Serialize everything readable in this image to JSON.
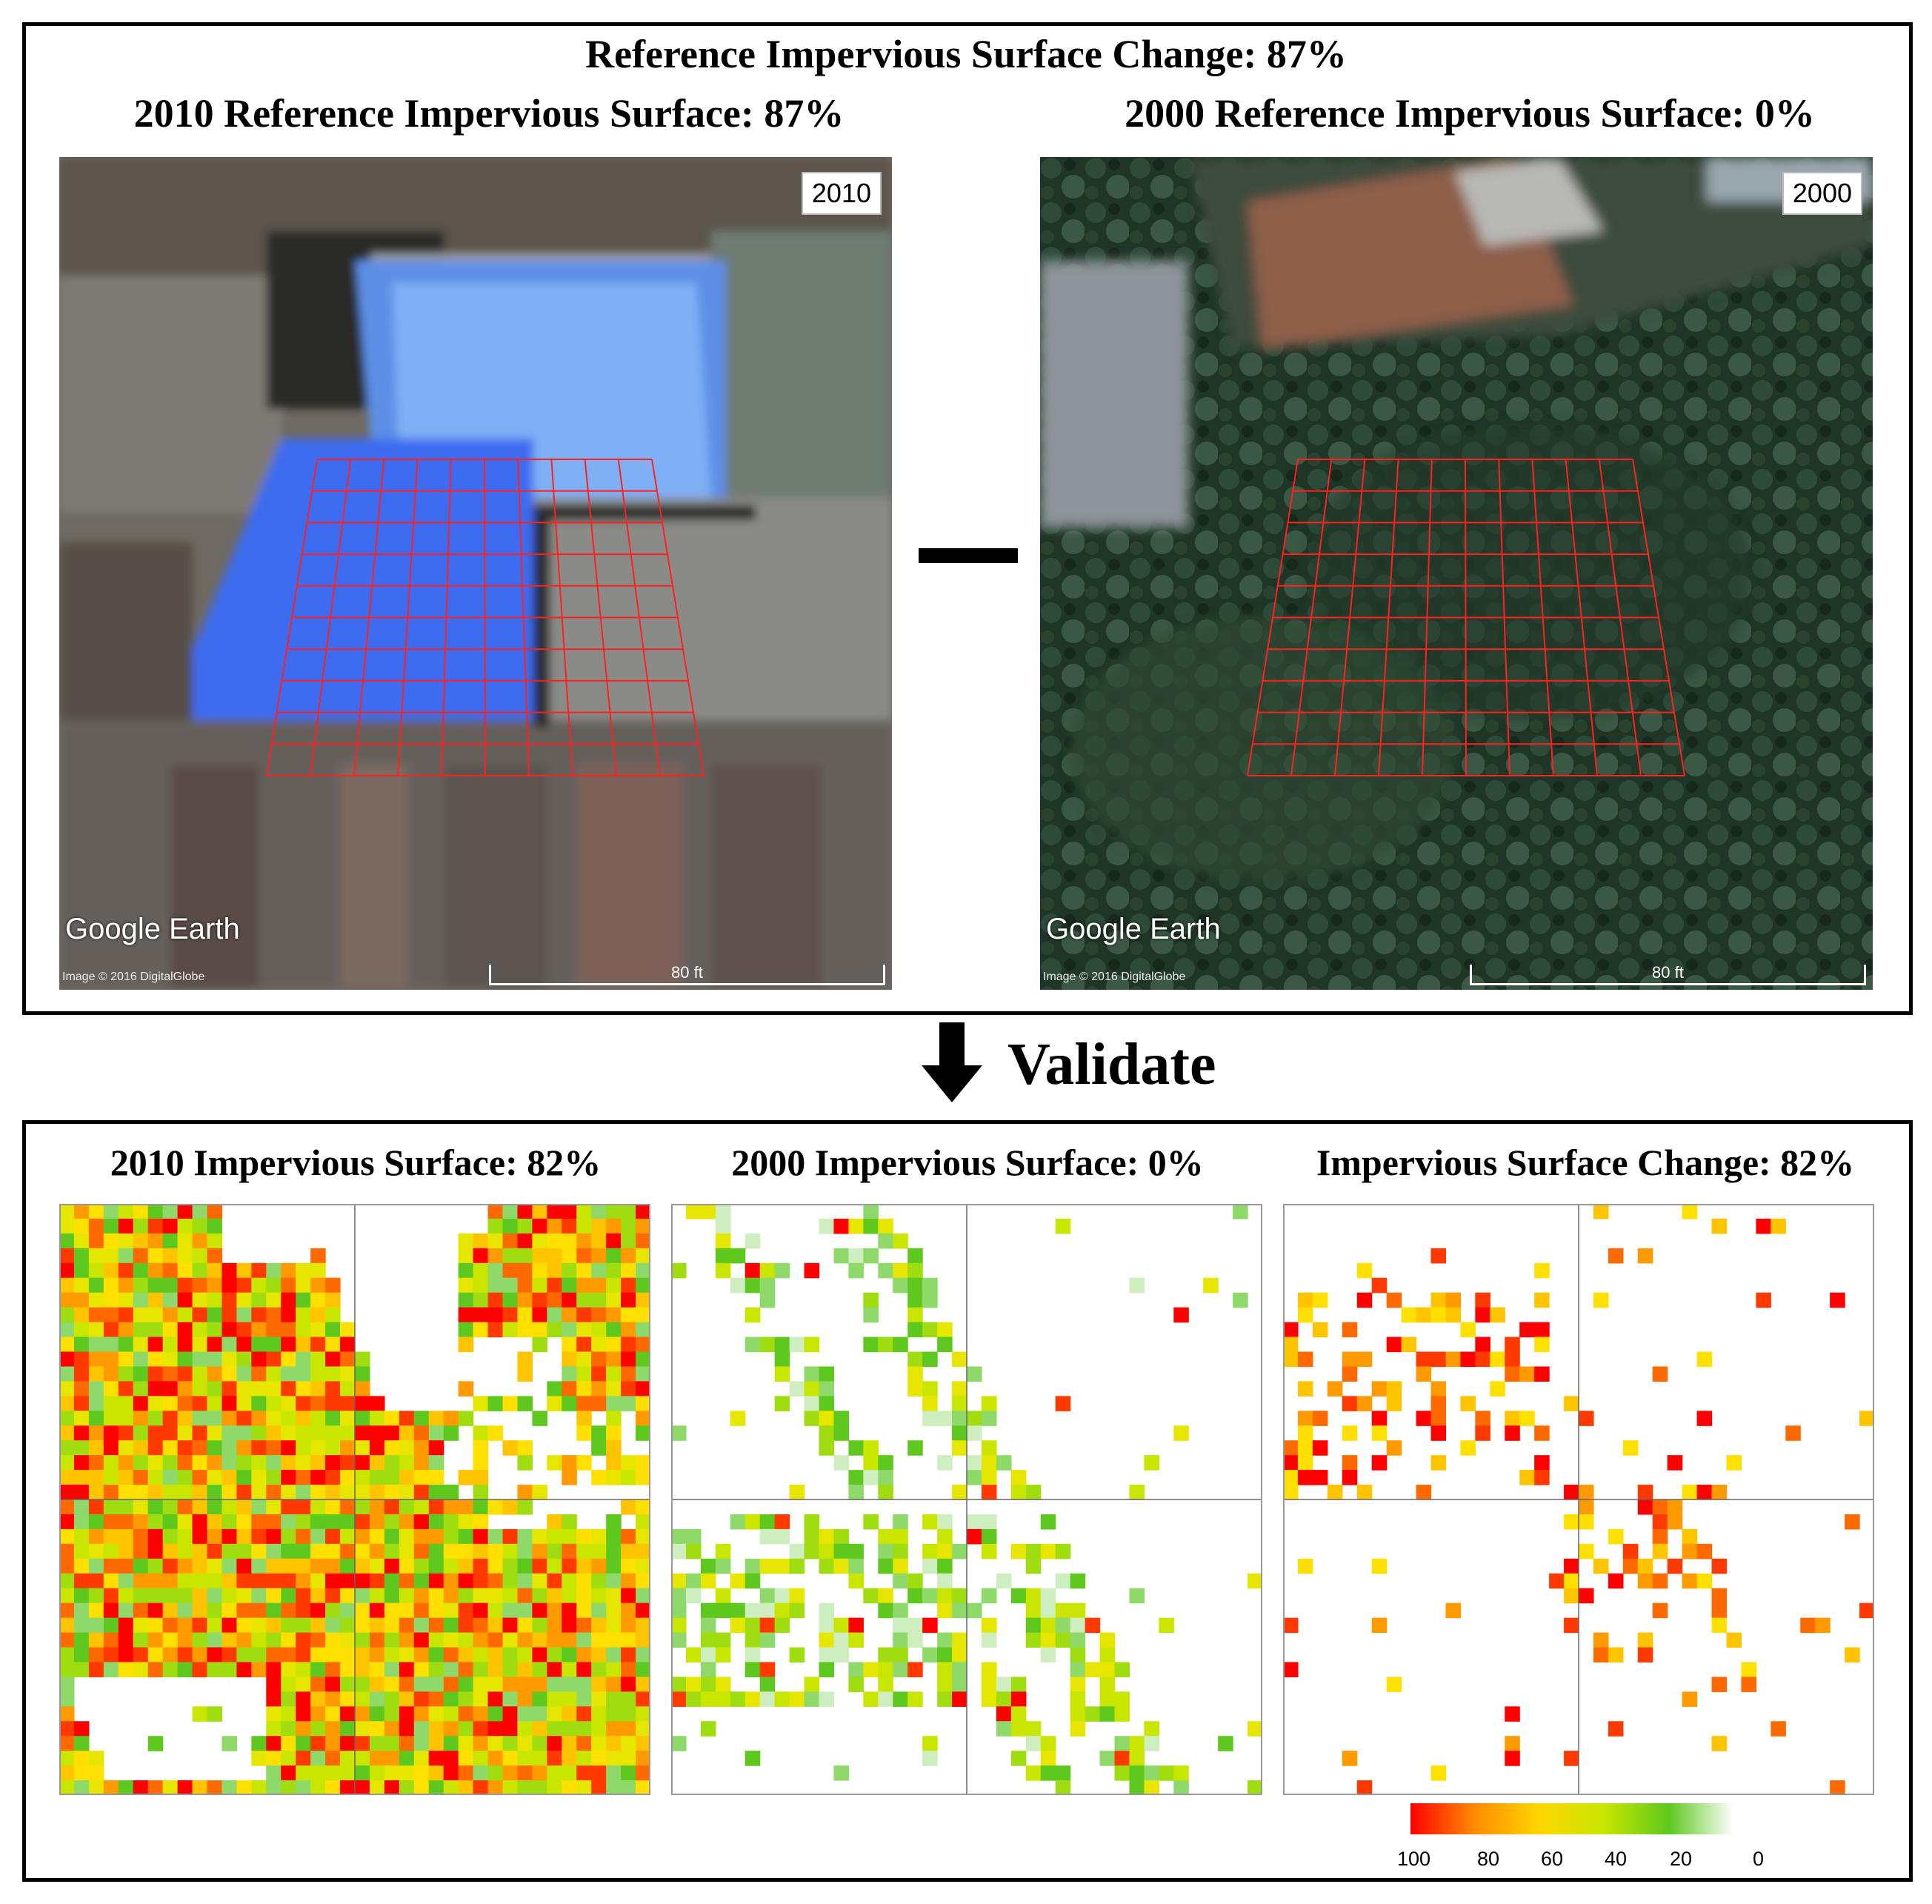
{
  "top": {
    "title": "Reference Impervious Surface Change: 87%",
    "left_title": "2010 Reference Impervious Surface: 87%",
    "right_title": "2000 Reference Impervious Surface: 0%",
    "left_year": "2010",
    "right_year": "2000",
    "watermark": "Google Earth",
    "credit": "Image © 2016 DigitalGlobe",
    "scale_label": "80 ft",
    "operator": "−"
  },
  "validate_label": "Validate",
  "bottom": {
    "titles": [
      "2010 Impervious Surface: 82%",
      "2000 Impervious Surface: 0%",
      "Impervious Surface Change: 82%"
    ]
  },
  "legend": {
    "ticks": [
      "100",
      "80",
      "60",
      "40",
      "20",
      "0"
    ],
    "colors": [
      "#ff0000",
      "#ff8c00",
      "#ffd700",
      "#c8e600",
      "#5ec81e",
      "#ffffff"
    ]
  }
}
